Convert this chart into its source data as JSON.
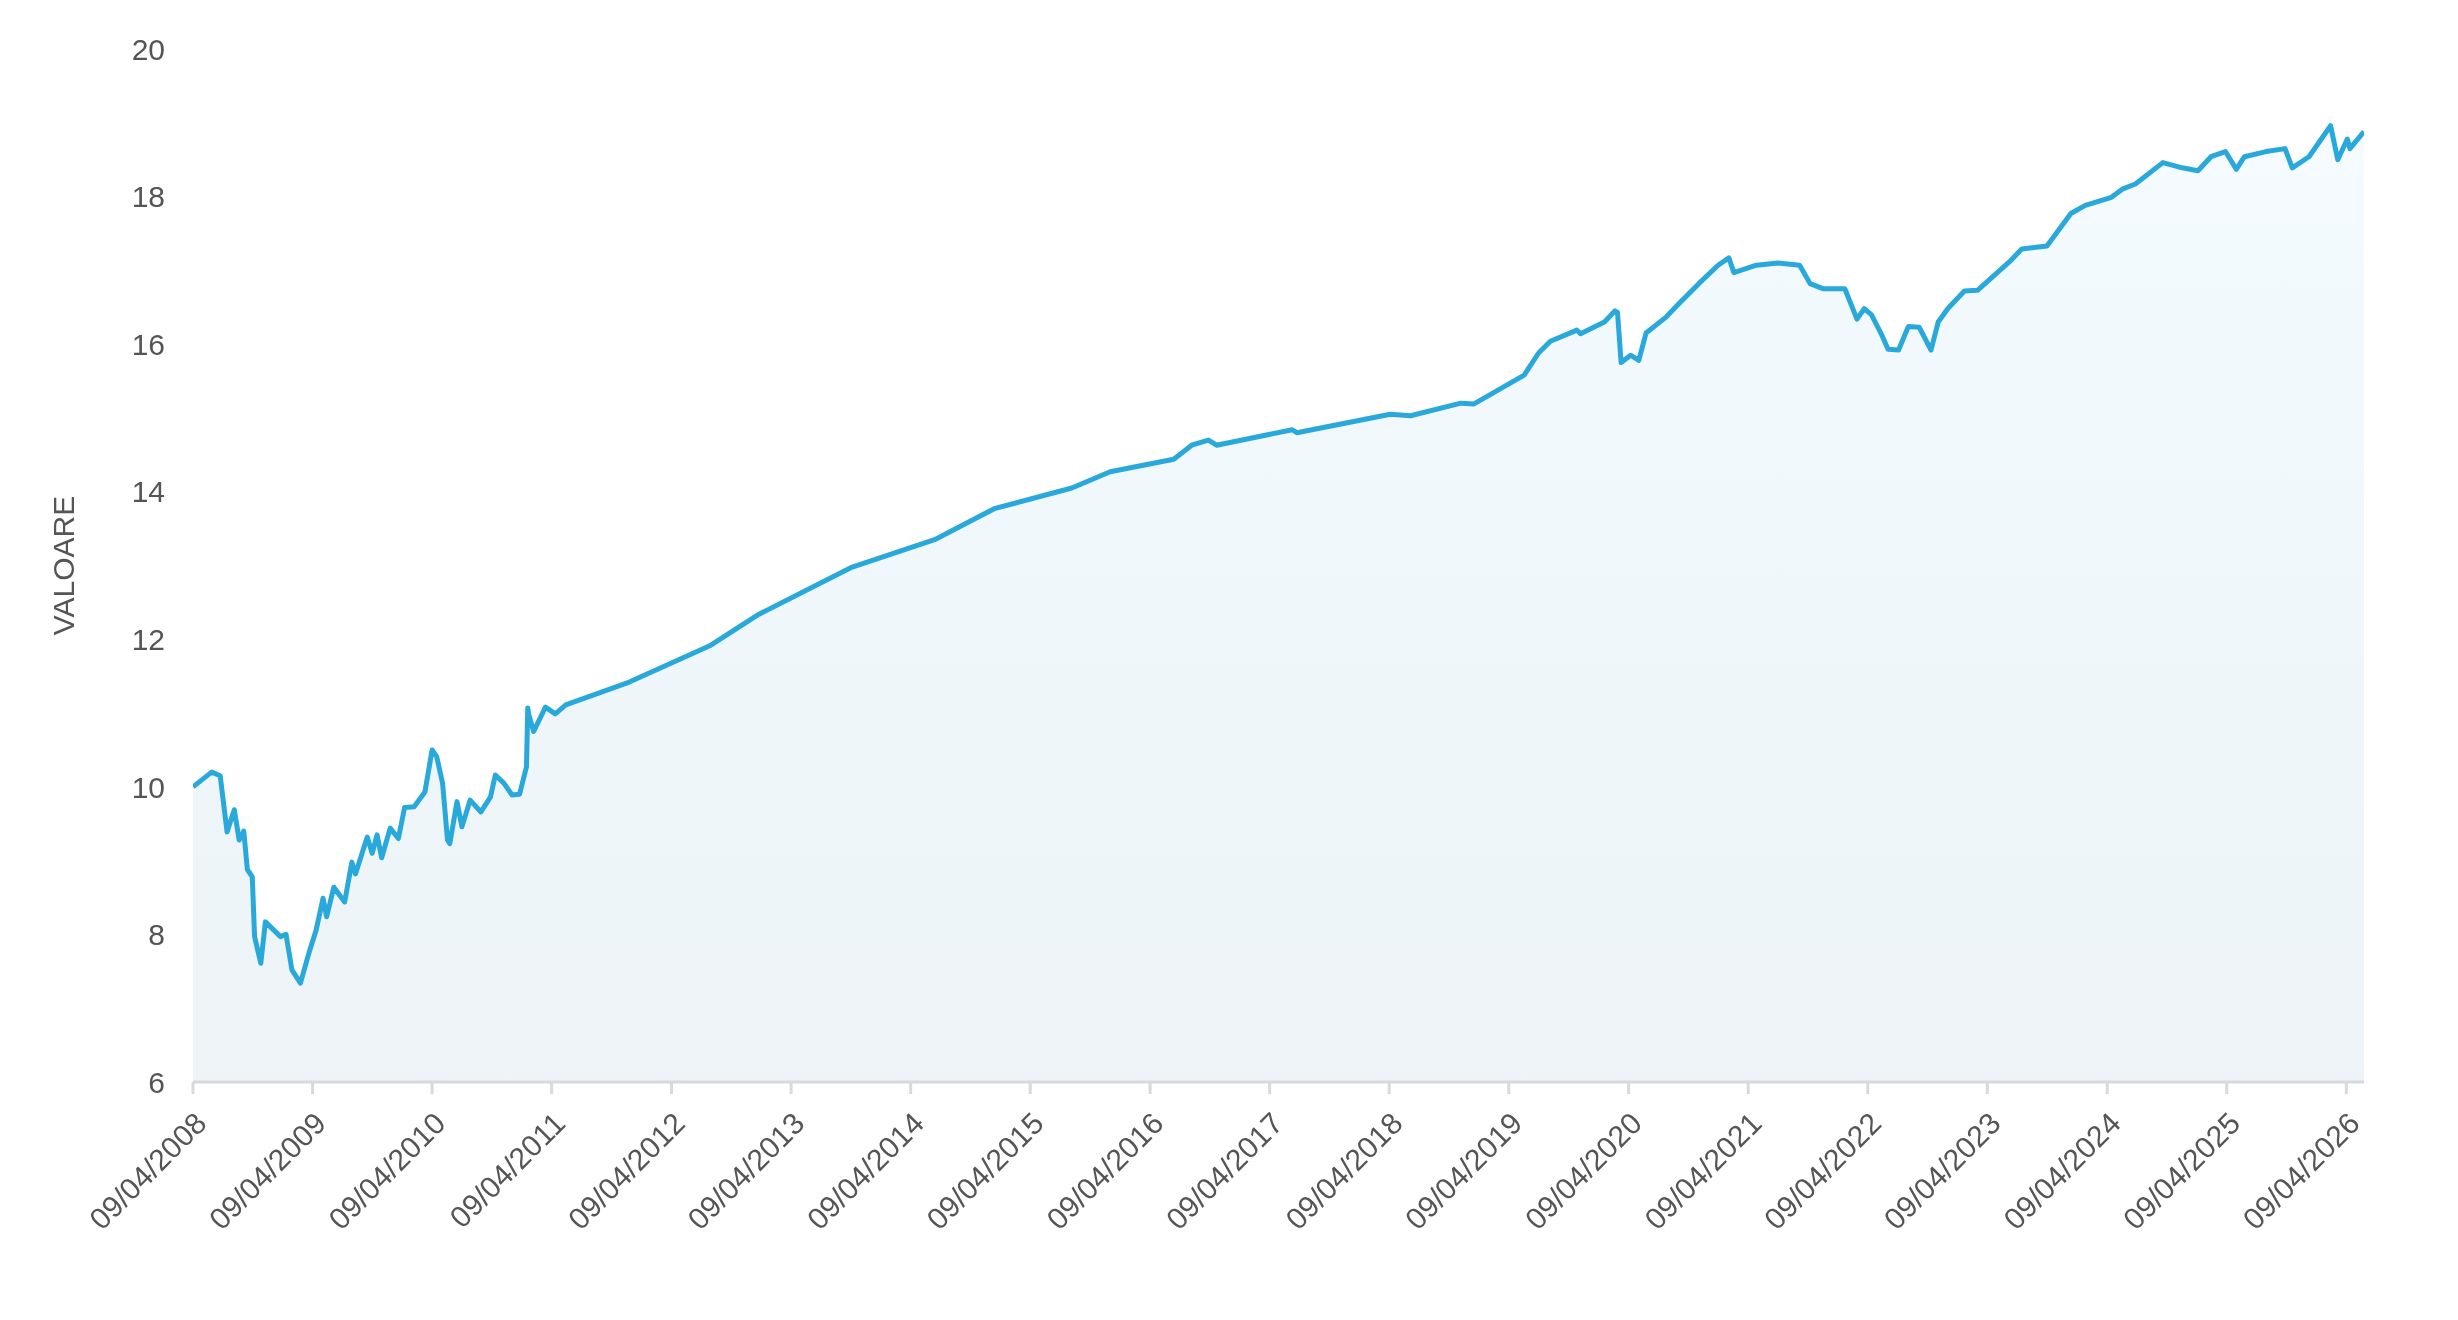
{
  "chart_data": {
    "type": "area",
    "ylabel": "VALOARE",
    "color": "#29a8dc",
    "x": [
      "2008-04-09",
      "2008-06-05",
      "2008-07-01",
      "2008-07-22",
      "2008-08-13",
      "2008-08-28",
      "2008-09-11",
      "2008-09-22",
      "2008-10-07",
      "2008-10-14",
      "2008-11-02",
      "2008-11-16",
      "2009-01-01",
      "2009-01-18",
      "2009-02-05",
      "2009-03-03",
      "2009-03-29",
      "2009-04-20",
      "2009-05-11",
      "2009-05-22",
      "2009-06-13",
      "2009-07-16",
      "2009-08-07",
      "2009-08-18",
      "2009-09-23",
      "2009-10-08",
      "2009-10-23",
      "2009-11-06",
      "2009-12-02",
      "2009-12-27",
      "2010-01-15",
      "2010-02-13",
      "2010-03-18",
      "2010-04-09",
      "2010-04-23",
      "2010-05-11",
      "2010-05-26",
      "2010-06-02",
      "2010-06-24",
      "2010-07-09",
      "2010-08-03",
      "2010-09-05",
      "2010-10-04",
      "2010-10-19",
      "2010-11-14",
      "2010-12-09",
      "2011-01-01",
      "2011-01-22",
      "2011-01-26",
      "2011-01-29",
      "2011-02-13",
      "2011-03-21",
      "2011-04-20",
      "2011-05-22",
      "2011-12-02",
      "2012-08-07",
      "2013-01-01",
      "2013-10-08",
      "2014-06-21",
      "2014-12-20",
      "2015-08-14",
      "2015-12-09",
      "2016-06-20",
      "2016-08-14",
      "2016-10-04",
      "2016-10-29",
      "2017-06-17",
      "2017-07-01",
      "2018-04-12",
      "2018-06-13",
      "2018-11-14",
      "2018-12-24",
      "2019-05-26",
      "2019-07-09",
      "2019-08-14",
      "2019-11-03",
      "2019-11-14",
      "2020-01-26",
      "2020-02-27",
      "2020-03-06",
      "2020-03-17",
      "2020-04-15",
      "2020-05-10",
      "2020-06-01",
      "2020-08-02",
      "2020-09-12",
      "2020-11-09",
      "2021-01-07",
      "2021-02-09",
      "2021-02-24",
      "2021-05-04",
      "2021-07-09",
      "2021-09-13",
      "2021-10-15",
      "2021-11-25",
      "2022-01-29",
      "2022-03-07",
      "2022-03-29",
      "2022-04-20",
      "2022-05-19",
      "2022-06-10",
      "2022-07-12",
      "2022-08-11",
      "2022-09-13",
      "2022-10-19",
      "2022-11-10",
      "2022-12-09",
      "2023-01-29",
      "2023-03-10",
      "2023-06-21",
      "2023-07-23",
      "2023-10-08",
      "2023-12-20",
      "2024-02-02",
      "2024-04-22",
      "2024-05-25",
      "2024-07-04",
      "2024-09-26",
      "2024-11-24",
      "2025-01-11",
      "2025-02-20",
      "2025-04-05",
      "2025-05-08",
      "2025-06-02",
      "2025-08-07",
      "2025-10-04",
      "2025-10-26",
      "2025-12-16",
      "2026-02-20",
      "2026-03-14",
      "2026-04-12",
      "2026-04-20",
      "2026-06-02"
    ],
    "values": [
      10.0,
      10.2,
      10.15,
      9.39,
      9.69,
      9.28,
      9.4,
      8.88,
      8.78,
      7.97,
      7.61,
      8.17,
      7.97,
      8.0,
      7.52,
      7.34,
      7.75,
      8.06,
      8.49,
      8.24,
      8.64,
      8.44,
      8.98,
      8.82,
      9.32,
      9.1,
      9.35,
      9.04,
      9.44,
      9.3,
      9.72,
      9.73,
      9.93,
      10.5,
      10.41,
      10.05,
      9.28,
      9.23,
      9.8,
      9.46,
      9.82,
      9.66,
      9.86,
      10.16,
      10.05,
      9.89,
      9.9,
      10.27,
      11.07,
      10.98,
      10.75,
      11.08,
      10.99,
      11.11,
      11.42,
      11.92,
      12.34,
      12.97,
      13.35,
      13.77,
      14.05,
      14.27,
      14.44,
      14.63,
      14.7,
      14.63,
      14.84,
      14.8,
      15.05,
      15.03,
      15.2,
      15.19,
      15.58,
      15.88,
      16.04,
      16.19,
      16.14,
      16.3,
      16.45,
      16.43,
      15.75,
      15.85,
      15.78,
      16.15,
      16.37,
      16.56,
      16.82,
      17.07,
      17.17,
      16.97,
      17.07,
      17.1,
      17.07,
      16.82,
      16.75,
      16.75,
      16.34,
      16.48,
      16.4,
      16.15,
      15.93,
      15.92,
      16.24,
      16.23,
      15.92,
      16.3,
      16.48,
      16.72,
      16.73,
      17.14,
      17.29,
      17.33,
      17.77,
      17.88,
      17.99,
      18.1,
      18.17,
      18.46,
      18.39,
      18.35,
      18.54,
      18.61,
      18.37,
      18.54,
      18.61,
      18.65,
      18.39,
      18.54,
      18.96,
      18.5,
      18.78,
      18.65,
      18.88
    ],
    "xlim": [
      "2008-04-09",
      "2026-06-02"
    ],
    "xticks": [
      {
        "value": "2008-04-09",
        "label": "09/04/2008"
      },
      {
        "value": "2009-04-09",
        "label": "09/04/2009"
      },
      {
        "value": "2010-04-09",
        "label": "09/04/2010"
      },
      {
        "value": "2011-04-09",
        "label": "09/04/2011"
      },
      {
        "value": "2012-04-09",
        "label": "09/04/2012"
      },
      {
        "value": "2013-04-09",
        "label": "09/04/2013"
      },
      {
        "value": "2014-04-09",
        "label": "09/04/2014"
      },
      {
        "value": "2015-04-09",
        "label": "09/04/2015"
      },
      {
        "value": "2016-04-09",
        "label": "09/04/2016"
      },
      {
        "value": "2017-04-09",
        "label": "09/04/2017"
      },
      {
        "value": "2018-04-09",
        "label": "09/04/2018"
      },
      {
        "value": "2019-04-09",
        "label": "09/04/2019"
      },
      {
        "value": "2020-04-09",
        "label": "09/04/2020"
      },
      {
        "value": "2021-04-09",
        "label": "09/04/2021"
      },
      {
        "value": "2022-04-09",
        "label": "09/04/2022"
      },
      {
        "value": "2023-04-09",
        "label": "09/04/2023"
      },
      {
        "value": "2024-04-09",
        "label": "09/04/2024"
      },
      {
        "value": "2025-04-09",
        "label": "09/04/2025"
      },
      {
        "value": "2026-04-09",
        "label": "09/04/2026"
      }
    ],
    "ylim": [
      6,
      20
    ],
    "yticks": [
      6,
      8,
      10,
      12,
      14,
      16,
      18,
      20
    ]
  }
}
